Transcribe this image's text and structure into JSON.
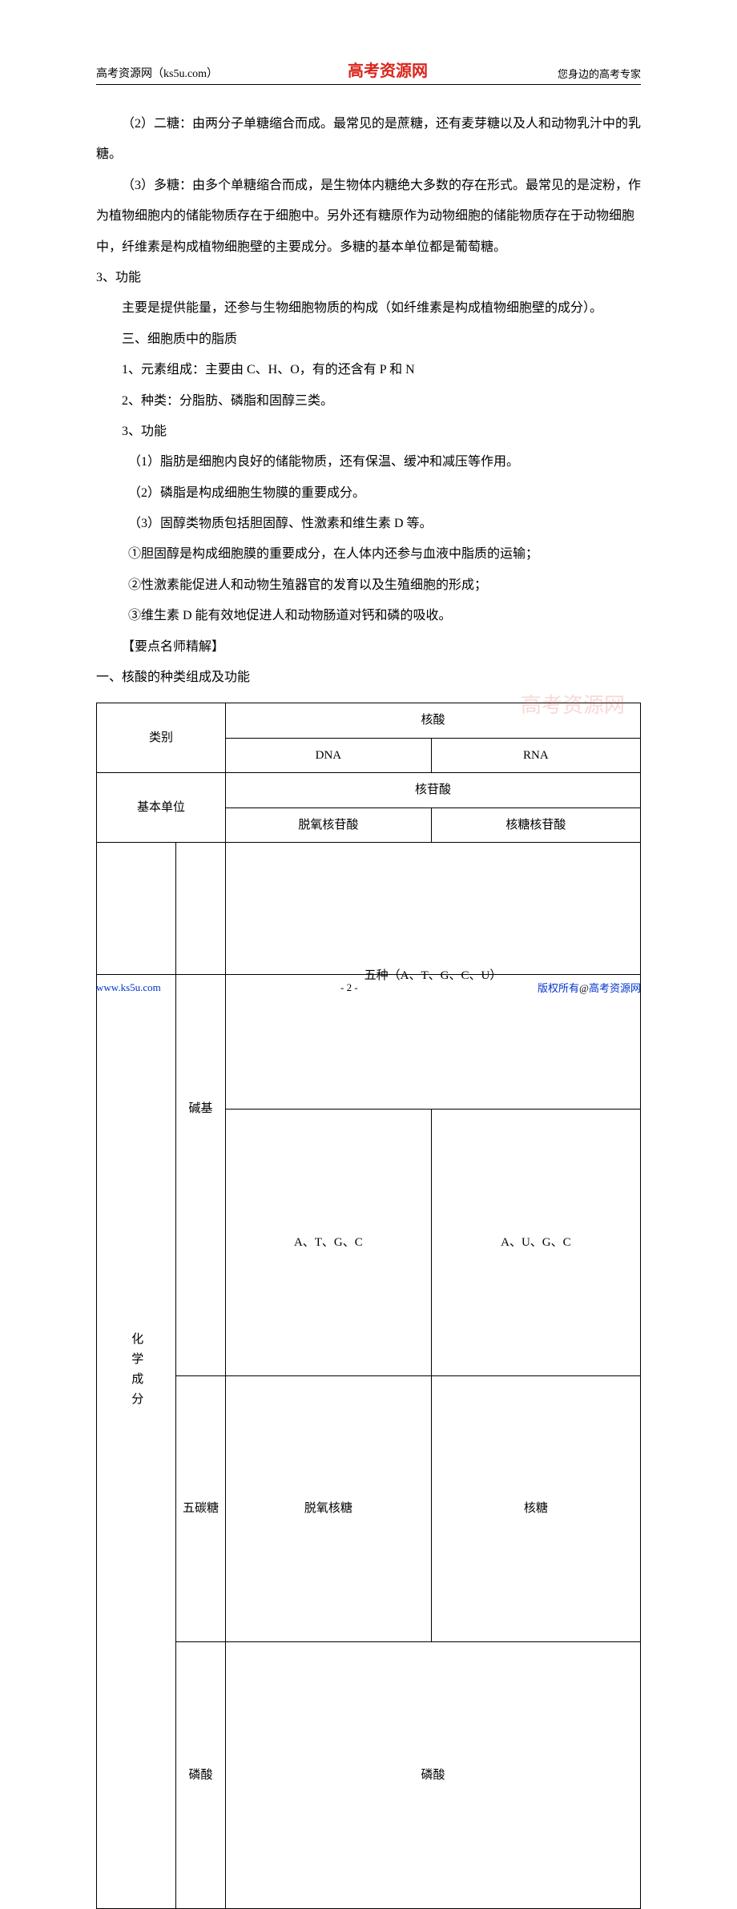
{
  "header": {
    "left": "高考资源网（ks5u.com）",
    "center": "高考资源网",
    "right": "您身边的高考专家"
  },
  "body": {
    "p1": "（2）二糖：由两分子单糖缩合而成。最常见的是蔗糖，还有麦芽糖以及人和动物乳汁中的乳糖。",
    "p2": "（3）多糖：由多个单糖缩合而成，是生物体内糖绝大多数的存在形式。最常见的是淀粉，作为植物细胞内的储能物质存在于细胞中。另外还有糖原作为动物细胞的储能物质存在于动物细胞中，纤维素是构成植物细胞壁的主要成分。多糖的基本单位都是葡萄糖。",
    "p3": "3、功能",
    "p4": "主要是提供能量，还参与生物细胞物质的构成（如纤维素是构成植物细胞壁的成分）。",
    "p5": "三、细胞质中的脂质",
    "p6": "1、元素组成：主要由 C、H、O，有的还含有 P 和 N",
    "p7": "2、种类：分脂肪、磷脂和固醇三类。",
    "p8": "3、功能",
    "p9": "（1）脂肪是细胞内良好的储能物质，还有保温、缓冲和减压等作用。",
    "p10": "（2）磷脂是构成细胞生物膜的重要成分。",
    "p11": "（3）固醇类物质包括胆固醇、性激素和维生素 D 等。",
    "p12": "①胆固醇是构成细胞膜的重要成分，在人体内还参与血液中脂质的运输；",
    "p13": "②性激素能促进人和动物生殖器官的发育以及生殖细胞的形成；",
    "p14": "③维生素 D 能有效地促进人和动物肠道对钙和磷的吸收。",
    "p15": "【要点名师精解】",
    "p16": "一、核酸的种类组成及功能"
  },
  "table": {
    "r1c1": "类别",
    "r1c2": "核酸",
    "r2c1": "DNA",
    "r2c2": "RNA",
    "r3c1": "基本单位",
    "r3c2": "核苷酸",
    "r4c1": "脱氧核苷酸",
    "r4c2": "核糖核苷酸",
    "r5c1": "化学成分",
    "r5c2": "碱基",
    "r5c3": "五种（A、T、G、C、U）",
    "r6c1": "A、T、G、C",
    "r6c2": "A、U、G、C",
    "r7c1": "五碳糖",
    "r7c2": "脱氧核糖",
    "r7c3": "核糖",
    "r8c1": "磷酸",
    "r8c2": "磷酸"
  },
  "watermark": "高考资源网",
  "footer": {
    "left": "www.ks5u.com",
    "center": "- 2 -",
    "right_pre": "版权所有",
    "right_at": "@",
    "right_post": "高考资源网"
  },
  "colors": {
    "brand_red": "#d9251c",
    "link_blue": "#0033cc",
    "text": "#000000",
    "bg": "#ffffff"
  }
}
